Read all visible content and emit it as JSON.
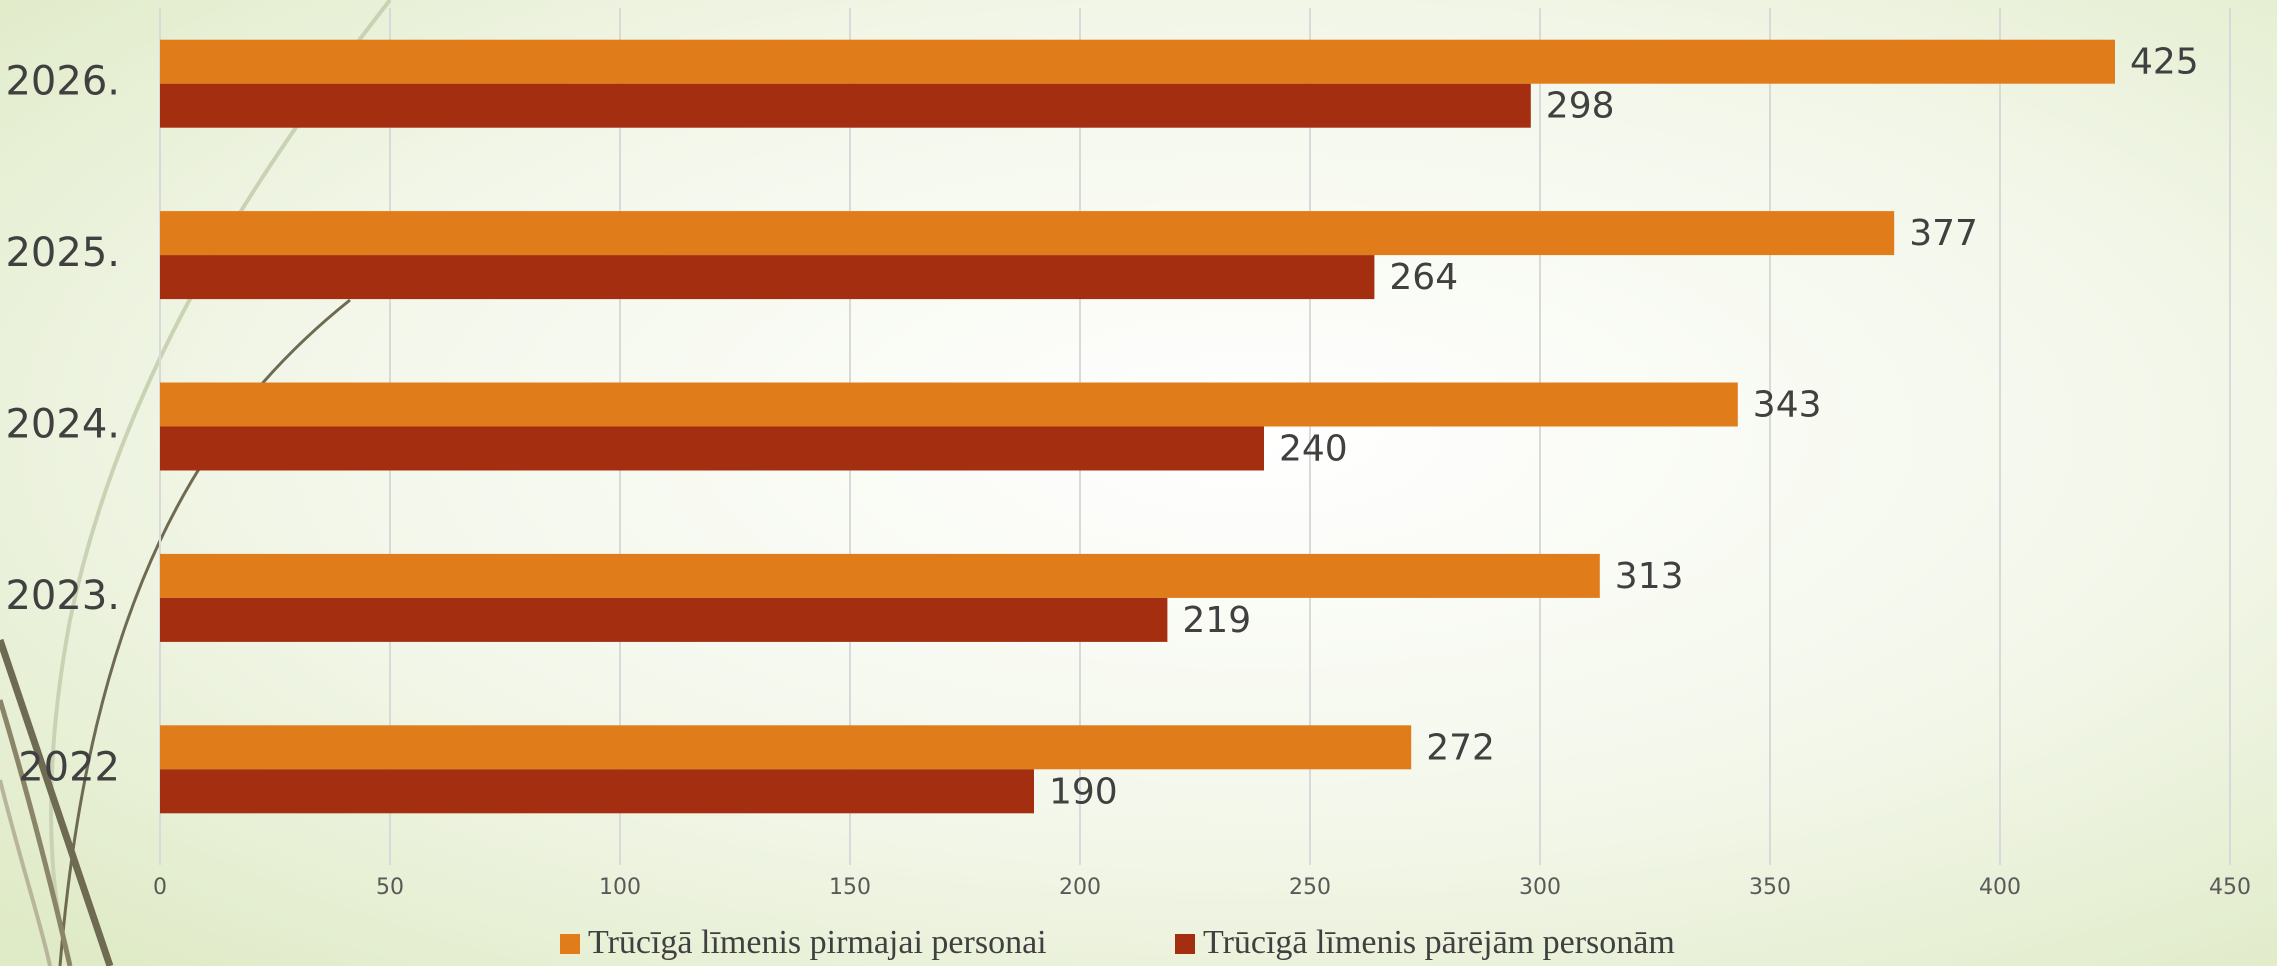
{
  "chart_data": {
    "type": "barh",
    "categories": [
      "2022",
      "2023.",
      "2024.",
      "2025.",
      "2026."
    ],
    "series": [
      {
        "name": "Trūcīgā līmenis pirmajai personai",
        "color": "#e07d1a",
        "values": [
          272,
          313,
          343,
          377,
          425
        ]
      },
      {
        "name": "Trūcīgā līmenis pārējām personām",
        "color": "#a32f10",
        "values": [
          190,
          219,
          240,
          264,
          298
        ]
      }
    ],
    "xlim": [
      0,
      450
    ],
    "xticks": [
      0,
      50,
      100,
      150,
      200,
      250,
      300,
      350,
      400,
      450
    ],
    "grid": true,
    "legend": "bottom"
  }
}
